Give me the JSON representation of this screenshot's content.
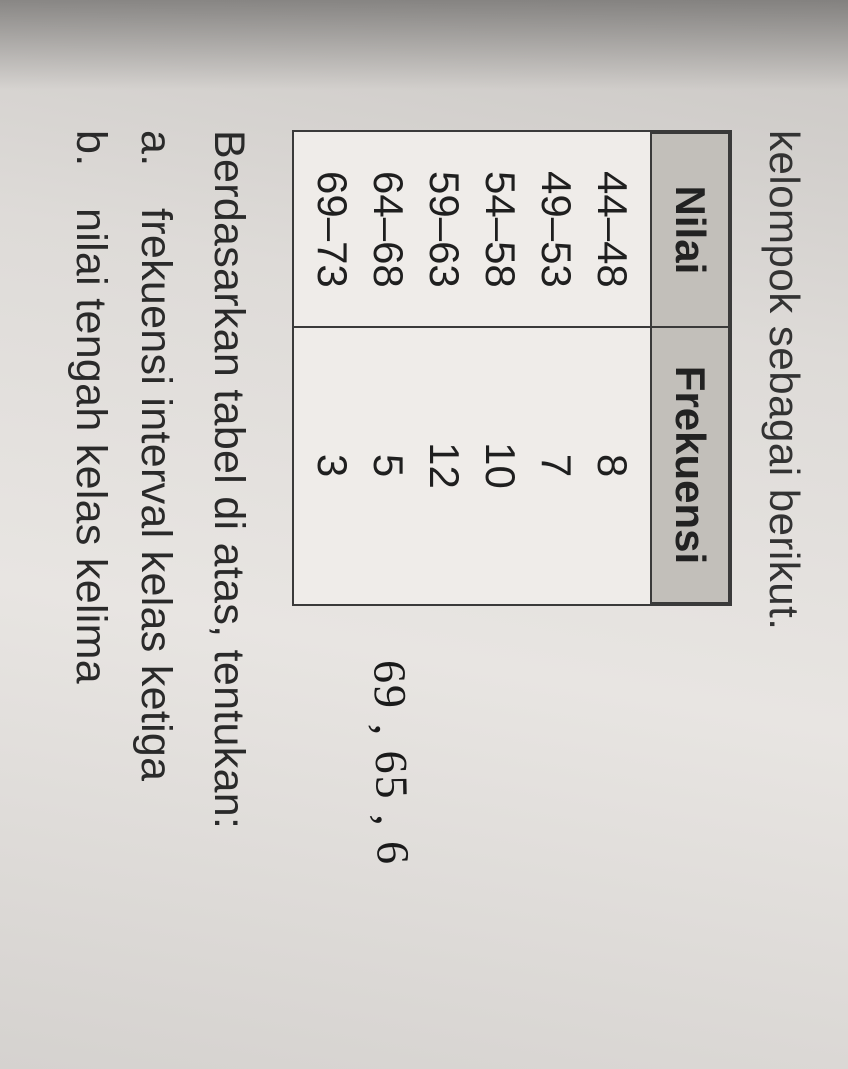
{
  "intro_text": "kelompok sebagai berikut.",
  "table": {
    "columns": [
      "Nilai",
      "Frekuensi"
    ],
    "rows": [
      [
        "44–48",
        "8"
      ],
      [
        "49–53",
        "7"
      ],
      [
        "54–58",
        "10"
      ],
      [
        "59–63",
        "12"
      ],
      [
        "64–68",
        "5"
      ],
      [
        "69–73",
        "3"
      ]
    ],
    "header_bg": "#c2bfba",
    "border_color": "#3a3a3a",
    "cell_bg": "#efece9",
    "header_fontsize": 42,
    "cell_fontsize": 42
  },
  "handwriting_text": "69 , 65 , 6",
  "question_text": "Berdasarkan tabel di atas, tentukan:",
  "items": [
    {
      "marker": "a.",
      "text": "frekuensi interval kelas ketiga"
    },
    {
      "marker": "b.",
      "text": "nilai tengah kelas kelima"
    }
  ],
  "colors": {
    "page_bg": "#dedbd8",
    "text_color": "#2a2a2a"
  }
}
